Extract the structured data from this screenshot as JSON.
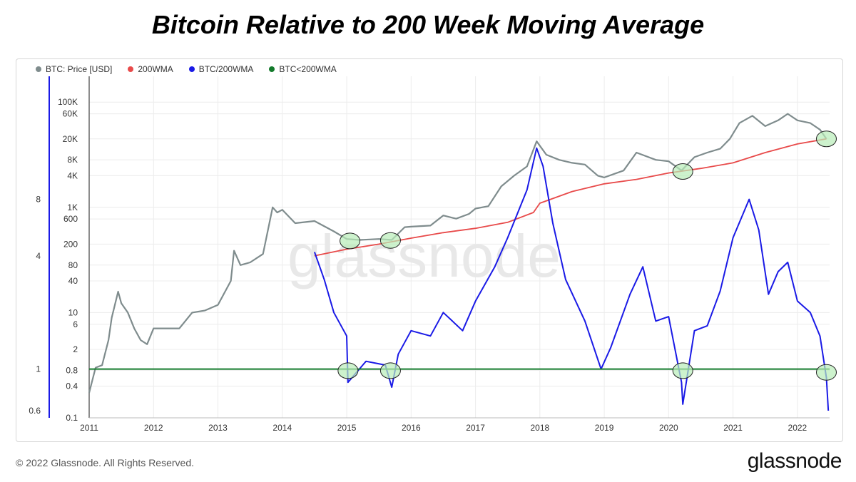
{
  "page": {
    "title": "Bitcoin Relative to 200 Week Moving Average",
    "copyright": "© 2022 Glassnode. All Rights Reserved.",
    "brand": "glassnode",
    "watermark": "glassnode"
  },
  "colors": {
    "price": "#7f8c8d",
    "wma": "#e84a4a",
    "ratio": "#1a1ae6",
    "threshold": "#137a2b",
    "highlight_fill": "#b8ecb8",
    "ratio_axis": "#1a1ae6"
  },
  "chart_data": {
    "type": "line",
    "legend": [
      {
        "name": "BTC: Price [USD]",
        "color": "#7f8c8d"
      },
      {
        "name": "200WMA",
        "color": "#e84a4a"
      },
      {
        "name": "BTC/200WMA",
        "color": "#1a1ae6"
      },
      {
        "name": "BTC<200WMA",
        "color": "#137a2b"
      }
    ],
    "legend_position": "top-left",
    "x_ticks": [
      "2011",
      "2012",
      "2013",
      "2014",
      "2015",
      "2016",
      "2017",
      "2018",
      "2019",
      "2020",
      "2021",
      "2022"
    ],
    "x_range": [
      2011.0,
      2022.5
    ],
    "price_axis": {
      "scale": "log",
      "range": [
        0.1,
        200000
      ],
      "ticks": [
        {
          "v": 0.1,
          "label": "0.1"
        },
        {
          "v": 0.4,
          "label": "0.4"
        },
        {
          "v": 0.8,
          "label": "0.8"
        },
        {
          "v": 2,
          "label": "2"
        },
        {
          "v": 6,
          "label": "6"
        },
        {
          "v": 10,
          "label": "10"
        },
        {
          "v": 40,
          "label": "40"
        },
        {
          "v": 80,
          "label": "80"
        },
        {
          "v": 200,
          "label": "200"
        },
        {
          "v": 600,
          "label": "600"
        },
        {
          "v": 1000,
          "label": "1K"
        },
        {
          "v": 4000,
          "label": "4K"
        },
        {
          "v": 8000,
          "label": "8K"
        },
        {
          "v": 20000,
          "label": "20K"
        },
        {
          "v": 60000,
          "label": "60K"
        },
        {
          "v": 100000,
          "label": "100K"
        }
      ]
    },
    "ratio_axis": {
      "scale": "log",
      "range": [
        0.55,
        32
      ],
      "ticks": [
        {
          "v": 0.6,
          "label": "0.6"
        },
        {
          "v": 1,
          "label": "1"
        },
        {
          "v": 4,
          "label": "4"
        },
        {
          "v": 8,
          "label": "8"
        }
      ]
    },
    "grid": true,
    "series": [
      {
        "name": "BTC: Price [USD]",
        "axis": "price",
        "x": [
          2011.0,
          2011.1,
          2011.2,
          2011.3,
          2011.35,
          2011.45,
          2011.5,
          2011.6,
          2011.7,
          2011.8,
          2011.9,
          2012.0,
          2012.2,
          2012.4,
          2012.6,
          2012.8,
          2013.0,
          2013.2,
          2013.25,
          2013.35,
          2013.5,
          2013.7,
          2013.85,
          2013.92,
          2014.0,
          2014.2,
          2014.5,
          2014.8,
          2015.0,
          2015.2,
          2015.5,
          2015.7,
          2015.9,
          2016.0,
          2016.3,
          2016.5,
          2016.7,
          2016.9,
          2017.0,
          2017.2,
          2017.4,
          2017.6,
          2017.8,
          2017.95,
          2018.1,
          2018.3,
          2018.5,
          2018.7,
          2018.9,
          2019.0,
          2019.3,
          2019.5,
          2019.8,
          2020.0,
          2020.2,
          2020.4,
          2020.6,
          2020.8,
          2020.95,
          2021.1,
          2021.3,
          2021.5,
          2021.7,
          2021.85,
          2022.0,
          2022.2,
          2022.35,
          2022.45
        ],
        "values": [
          0.3,
          0.9,
          1.0,
          3.0,
          8.0,
          25,
          15,
          10,
          5,
          3,
          2.5,
          5,
          5,
          5,
          10,
          11,
          14,
          40,
          150,
          80,
          90,
          130,
          1000,
          800,
          900,
          500,
          550,
          350,
          250,
          240,
          250,
          240,
          420,
          430,
          450,
          700,
          610,
          750,
          950,
          1050,
          2500,
          4000,
          6000,
          18000,
          10000,
          8000,
          7000,
          6500,
          4000,
          3700,
          5000,
          11000,
          8000,
          7500,
          5000,
          9000,
          11000,
          13000,
          20000,
          40000,
          55000,
          35000,
          45000,
          60000,
          45000,
          40000,
          30000,
          20000
        ]
      },
      {
        "name": "200WMA",
        "axis": "price",
        "x": [
          2014.5,
          2015.0,
          2015.5,
          2016.0,
          2016.5,
          2017.0,
          2017.5,
          2017.9,
          2018.0,
          2018.5,
          2019.0,
          2019.5,
          2020.0,
          2020.5,
          2021.0,
          2021.5,
          2022.0,
          2022.45
        ],
        "values": [
          120,
          160,
          200,
          260,
          330,
          400,
          520,
          800,
          1200,
          2000,
          2800,
          3400,
          4500,
          5500,
          7000,
          11000,
          16000,
          20000
        ]
      },
      {
        "name": "BTC/200WMA",
        "axis": "ratio",
        "x": [
          2014.5,
          2014.65,
          2014.8,
          2015.0,
          2015.02,
          2015.3,
          2015.6,
          2015.7,
          2015.8,
          2016.0,
          2016.3,
          2016.5,
          2016.8,
          2017.0,
          2017.3,
          2017.5,
          2017.8,
          2017.95,
          2018.05,
          2018.2,
          2018.4,
          2018.7,
          2018.95,
          2019.1,
          2019.4,
          2019.6,
          2019.8,
          2020.0,
          2020.2,
          2020.22,
          2020.4,
          2020.6,
          2020.8,
          2021.0,
          2021.25,
          2021.4,
          2021.55,
          2021.7,
          2021.85,
          2022.0,
          2022.2,
          2022.35,
          2022.45,
          2022.48
        ],
        "values": [
          4.2,
          3.0,
          2.0,
          1.5,
          0.85,
          1.1,
          1.05,
          0.8,
          1.2,
          1.6,
          1.5,
          2.0,
          1.6,
          2.3,
          3.5,
          5.0,
          9.0,
          15.0,
          12.0,
          6.0,
          3.0,
          1.8,
          1.0,
          1.3,
          2.5,
          3.5,
          1.8,
          1.9,
          0.85,
          0.65,
          1.6,
          1.7,
          2.6,
          5.0,
          8.0,
          5.5,
          2.5,
          3.3,
          3.7,
          2.3,
          2.0,
          1.5,
          0.9,
          0.6
        ]
      },
      {
        "name": "BTC<200WMA",
        "axis": "ratio",
        "x": [
          2011.0,
          2022.5
        ],
        "values": [
          1.0,
          1.0
        ]
      }
    ],
    "highlights": [
      {
        "x": 2015.05,
        "axis": "price",
        "v": 230
      },
      {
        "x": 2015.68,
        "axis": "price",
        "v": 235
      },
      {
        "x": 2020.22,
        "axis": "price",
        "v": 4800
      },
      {
        "x": 2022.45,
        "axis": "price",
        "v": 20000
      },
      {
        "x": 2015.02,
        "axis": "ratio",
        "v": 0.98
      },
      {
        "x": 2015.68,
        "axis": "ratio",
        "v": 0.98
      },
      {
        "x": 2020.22,
        "axis": "ratio",
        "v": 0.98
      },
      {
        "x": 2022.45,
        "axis": "ratio",
        "v": 0.96
      }
    ]
  }
}
